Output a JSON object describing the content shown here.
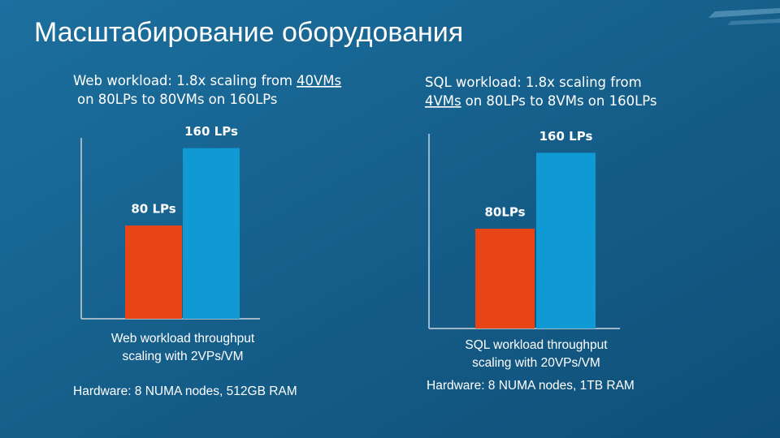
{
  "title": "Масштабирование оборудования",
  "chart_data": [
    {
      "type": "bar",
      "heading_parts": [
        "Web workload: 1.8x scaling from",
        "40VMs",
        "on 80LPs to 80VMs on 160LPs"
      ],
      "categories": [
        "80 LPs",
        "160 LPs"
      ],
      "values": [
        1,
        1.83
      ],
      "colors": [
        "#e84517",
        "#0f9ad3"
      ],
      "ylim": [
        0,
        1.94
      ],
      "caption_lines": [
        "Web workload throughput",
        "scaling with 2VPs/VM"
      ],
      "hardware": "Hardware: 8 NUMA nodes, 512GB RAM"
    },
    {
      "type": "bar",
      "heading_parts": [
        "SQL workload: 1.8x scaling from",
        "4VMs",
        "on 80LPs to 8VMs on 160LPs"
      ],
      "categories": [
        "80LPs",
        "160 LPs"
      ],
      "values": [
        1,
        1.76
      ],
      "colors": [
        "#e84517",
        "#0f9ad3"
      ],
      "ylim": [
        0,
        1.95
      ],
      "caption_lines": [
        "SQL workload throughput",
        "scaling with 20VPs/VM"
      ],
      "hardware": "Hardware: 8 NUMA nodes, 1TB RAM"
    }
  ]
}
